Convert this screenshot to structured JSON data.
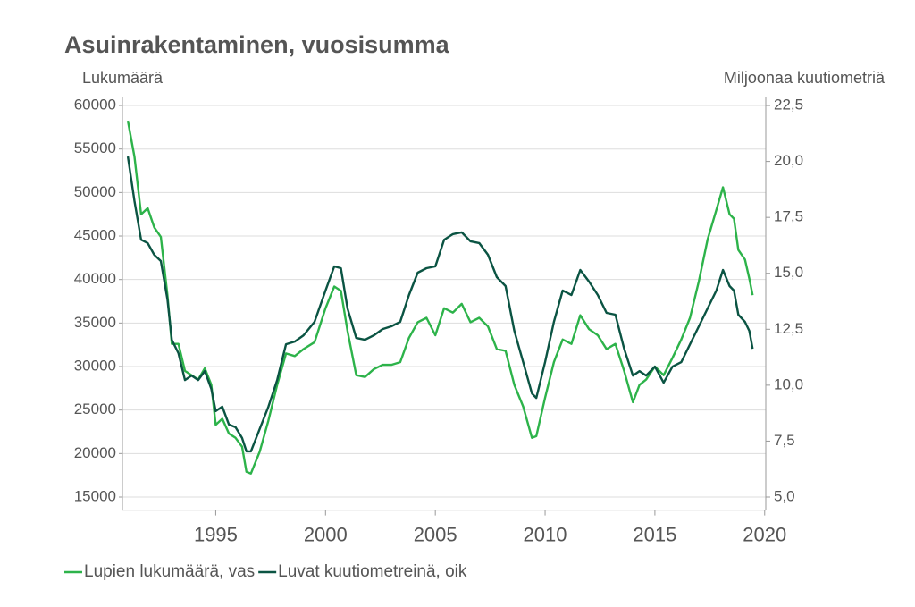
{
  "chart_data": {
    "type": "line",
    "title": "Asuinrakentaminen, vuosisumma",
    "y_label": "Lukumäärä",
    "y2_label": "Miljoonaa kuutiometriä",
    "x": [
      1991.0,
      1991.3,
      1991.6,
      1991.9,
      1992.2,
      1992.5,
      1992.8,
      1993.0,
      1993.3,
      1993.6,
      1993.9,
      1994.2,
      1994.5,
      1994.8,
      1995.0,
      1995.3,
      1995.6,
      1995.9,
      1996.2,
      1996.4,
      1996.6,
      1997.0,
      1997.4,
      1997.8,
      1998.2,
      1998.6,
      1999.0,
      1999.5,
      2000.0,
      2000.4,
      2000.7,
      2001.0,
      2001.4,
      2001.8,
      2002.2,
      2002.6,
      2003.0,
      2003.4,
      2003.8,
      2004.2,
      2004.6,
      2005.0,
      2005.4,
      2005.8,
      2006.2,
      2006.6,
      2007.0,
      2007.4,
      2007.8,
      2008.2,
      2008.6,
      2009.0,
      2009.4,
      2009.6,
      2010.0,
      2010.4,
      2010.8,
      2011.2,
      2011.6,
      2012.0,
      2012.4,
      2012.8,
      2013.2,
      2013.6,
      2014.0,
      2014.3,
      2014.6,
      2015.0,
      2015.4,
      2015.8,
      2016.2,
      2016.6,
      2017.0,
      2017.4,
      2017.8,
      2018.1,
      2018.4,
      2018.6,
      2018.8,
      2019.1,
      2019.3,
      2019.45
    ],
    "series": [
      {
        "name": "Lupien lukumäärä, vas",
        "color": "#2db34a",
        "axis": "y",
        "values": [
          58250,
          54100,
          47500,
          48200,
          46000,
          44900,
          38200,
          32600,
          32600,
          29500,
          29000,
          28500,
          29800,
          27900,
          23300,
          24000,
          22300,
          21800,
          20800,
          17900,
          17700,
          20200,
          23800,
          27900,
          31500,
          31200,
          32000,
          32800,
          36700,
          39200,
          38700,
          34100,
          29000,
          28800,
          29700,
          30200,
          30200,
          30500,
          33300,
          35100,
          35600,
          33600,
          36700,
          36200,
          37200,
          35100,
          35600,
          34600,
          32000,
          31800,
          27900,
          25400,
          21800,
          22000,
          26400,
          30500,
          33100,
          32600,
          35900,
          34300,
          33600,
          32000,
          32600,
          29500,
          25900,
          27900,
          28500,
          30000,
          29000,
          31000,
          33100,
          35600,
          39800,
          44600,
          48000,
          50600,
          47500,
          47000,
          43400,
          42300,
          40100,
          38200
        ]
      },
      {
        "name": "Luvat kuutiometreinä, oik",
        "color": "#0b5443",
        "axis": "y2",
        "values": [
          20.22,
          18.22,
          16.5,
          16.35,
          15.83,
          15.55,
          13.83,
          12.03,
          11.43,
          10.23,
          10.43,
          10.23,
          10.63,
          9.83,
          8.84,
          9.04,
          8.24,
          8.12,
          7.64,
          7.04,
          7.04,
          8.04,
          9.04,
          10.23,
          11.83,
          11.95,
          12.23,
          12.83,
          14.23,
          15.31,
          15.23,
          13.43,
          12.11,
          12.03,
          12.23,
          12.51,
          12.63,
          12.83,
          14.03,
          15.03,
          15.23,
          15.31,
          16.5,
          16.75,
          16.83,
          16.43,
          16.35,
          15.83,
          14.83,
          14.43,
          12.43,
          11.03,
          9.63,
          9.43,
          11.03,
          12.83,
          14.23,
          14.03,
          15.15,
          14.63,
          14.03,
          13.23,
          13.15,
          11.63,
          10.43,
          10.63,
          10.43,
          10.83,
          10.11,
          10.83,
          11.03,
          11.83,
          12.63,
          13.43,
          14.23,
          15.15,
          14.43,
          14.23,
          13.15,
          12.83,
          12.43,
          11.63
        ]
      }
    ],
    "xlim": [
      1990.75,
      2020.05
    ],
    "xticks": [
      1995,
      2000,
      2005,
      2010,
      2015,
      2020
    ],
    "ylim": [
      13500,
      61000
    ],
    "yticks": [
      15000,
      20000,
      25000,
      30000,
      35000,
      40000,
      45000,
      50000,
      55000,
      60000
    ],
    "y2lim": [
      4.4167,
      22.889
    ],
    "y2ticks": [
      {
        "value": 5,
        "label": "5,0"
      },
      {
        "value": 7.5,
        "label": "7,5"
      },
      {
        "value": 10,
        "label": "10,0"
      },
      {
        "value": 12.5,
        "label": "12,5"
      },
      {
        "value": 15,
        "label": "15,0"
      },
      {
        "value": 17.5,
        "label": "17,5"
      },
      {
        "value": 20,
        "label": "20,0"
      },
      {
        "value": 22.5,
        "label": "22,5"
      }
    ],
    "grid": true
  }
}
